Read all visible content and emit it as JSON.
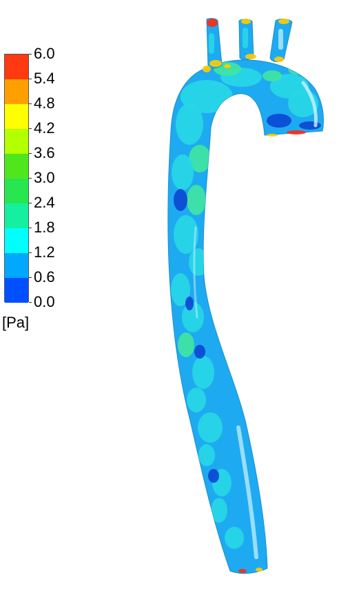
{
  "legend": {
    "unit": "[Pa]",
    "ticks": [
      "6.0",
      "5.4",
      "4.8",
      "4.2",
      "3.6",
      "3.0",
      "2.4",
      "1.8",
      "1.2",
      "0.6",
      "0.0"
    ],
    "colors": [
      "#ff3a10",
      "#ffa000",
      "#ffff00",
      "#b4ff00",
      "#50e61e",
      "#28e650",
      "#14f0a0",
      "#00ffff",
      "#00a8ff",
      "#0050ff"
    ]
  },
  "colors": {
    "base": "#1eaaf0",
    "cyan": "#28d7e6",
    "green": "#40e6a0",
    "highlight": "#ccf4ff",
    "dark": "#0a46d2",
    "hot": "#ff2a10",
    "warm": "#ffcc00"
  }
}
